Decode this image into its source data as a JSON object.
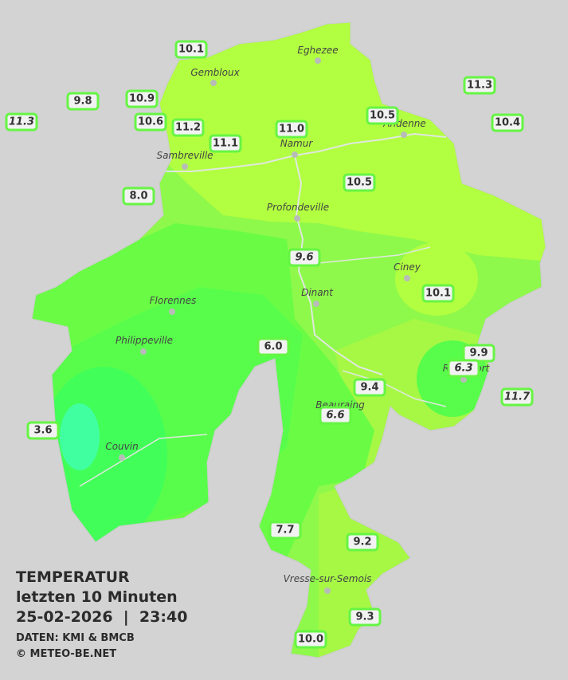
{
  "title": {
    "line1": "TEMPERATUR",
    "line2": "letzten 10 Minuten",
    "line3": "25-02-2026  |  23:40",
    "source": "DATEN: KMI & BMCB",
    "copyright": "© METEO-BE.NET"
  },
  "places": [
    {
      "name": "Eghezee"
    },
    {
      "name": "Gembloux"
    },
    {
      "name": "Andenne"
    },
    {
      "name": "Namur"
    },
    {
      "name": "Sambreville"
    },
    {
      "name": "Profondeville"
    },
    {
      "name": "Ciney"
    },
    {
      "name": "Dinant"
    },
    {
      "name": "Florennes"
    },
    {
      "name": "Philippeville"
    },
    {
      "name": "Couvin"
    },
    {
      "name": "Rochefort"
    },
    {
      "name": "Beauraing"
    },
    {
      "name": "Vresse-sur-Semois"
    }
  ],
  "stations": [
    {
      "label": "10.1"
    },
    {
      "label": "9.8"
    },
    {
      "label": "10.9"
    },
    {
      "label": "11.3",
      "italic": true
    },
    {
      "label": "10.6"
    },
    {
      "label": "11.2"
    },
    {
      "label": "11.1"
    },
    {
      "label": "11.0"
    },
    {
      "label": "10.5"
    },
    {
      "label": "11.3"
    },
    {
      "label": "10.4"
    },
    {
      "label": "10.5"
    },
    {
      "label": "8.0"
    },
    {
      "label": "9.6",
      "italic": true
    },
    {
      "label": "10.1"
    },
    {
      "label": "6.0"
    },
    {
      "label": "9.9"
    },
    {
      "label": "6.3",
      "italic": true
    },
    {
      "label": "9.4"
    },
    {
      "label": "6.6",
      "italic": true
    },
    {
      "label": "11.7",
      "italic": true
    },
    {
      "label": "3.6"
    },
    {
      "label": "7.7"
    },
    {
      "label": "9.2"
    },
    {
      "label": "9.3"
    },
    {
      "label": "10.0"
    }
  ]
}
